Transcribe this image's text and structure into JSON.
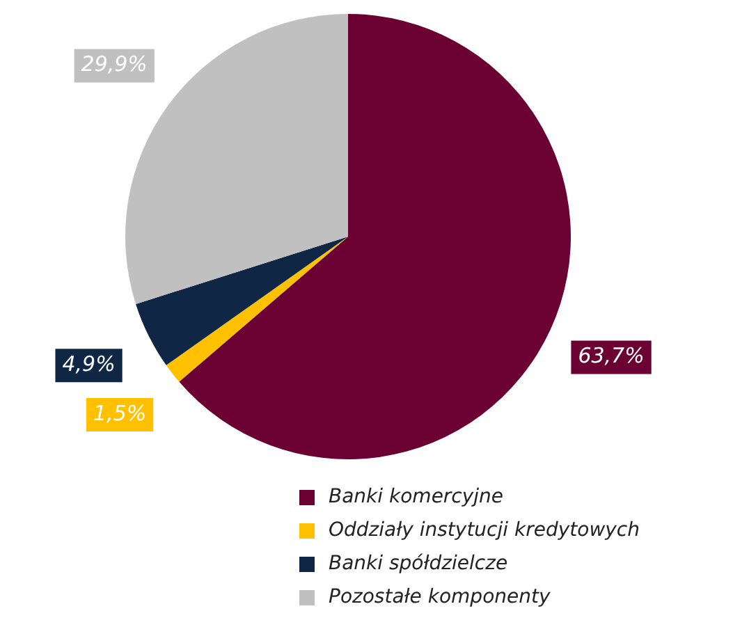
{
  "chart_data": {
    "type": "pie",
    "categories": [
      "Banki komercyjne",
      "Oddziały instytucji kredytowych",
      "Banki spółdzielcze",
      "Pozostałe komponenty"
    ],
    "values": [
      63.7,
      1.5,
      4.9,
      29.9
    ],
    "colors": [
      "#6b0033",
      "#ffc000",
      "#0f2744",
      "#c0c0c0"
    ],
    "value_labels": [
      "63,7%",
      "1,5%",
      "4,9%",
      "29,9%"
    ],
    "legend": "bottom right"
  }
}
